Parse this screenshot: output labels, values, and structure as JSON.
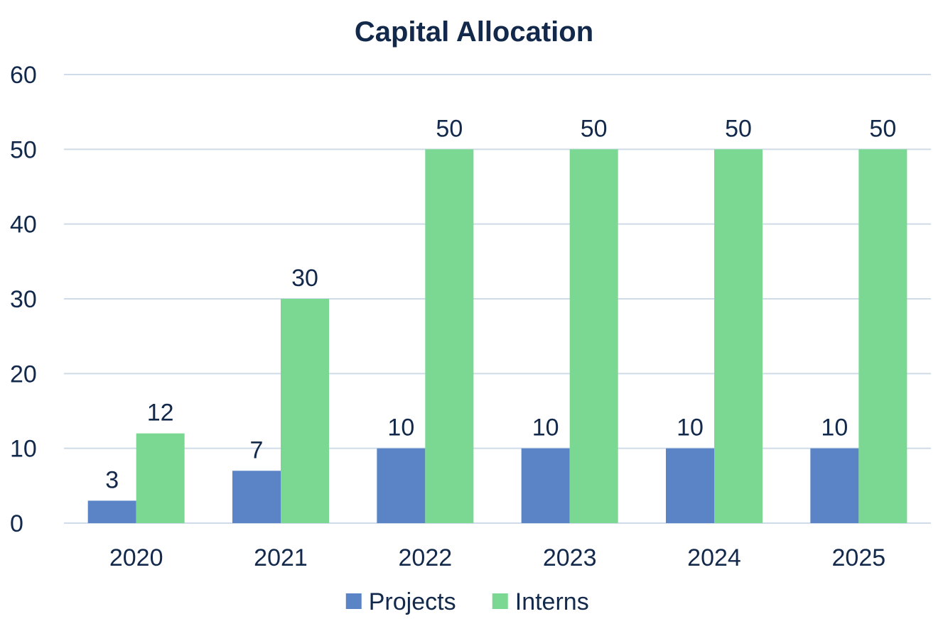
{
  "chart_data": {
    "type": "bar",
    "title": "Capital Allocation",
    "xlabel": "",
    "ylabel": "",
    "categories": [
      "2020",
      "2021",
      "2022",
      "2023",
      "2024",
      "2025"
    ],
    "series": [
      {
        "name": "Projects",
        "values": [
          3,
          7,
          10,
          10,
          10,
          10
        ],
        "color": "#5b84c7"
      },
      {
        "name": "Interns",
        "values": [
          12,
          30,
          50,
          50,
          50,
          50
        ],
        "color": "#7ad892"
      }
    ],
    "ylim": [
      0,
      60
    ],
    "yticks": [
      0,
      10,
      20,
      30,
      40,
      50,
      60
    ],
    "grid": true,
    "legend": "bottom-center",
    "data_labels": true
  }
}
